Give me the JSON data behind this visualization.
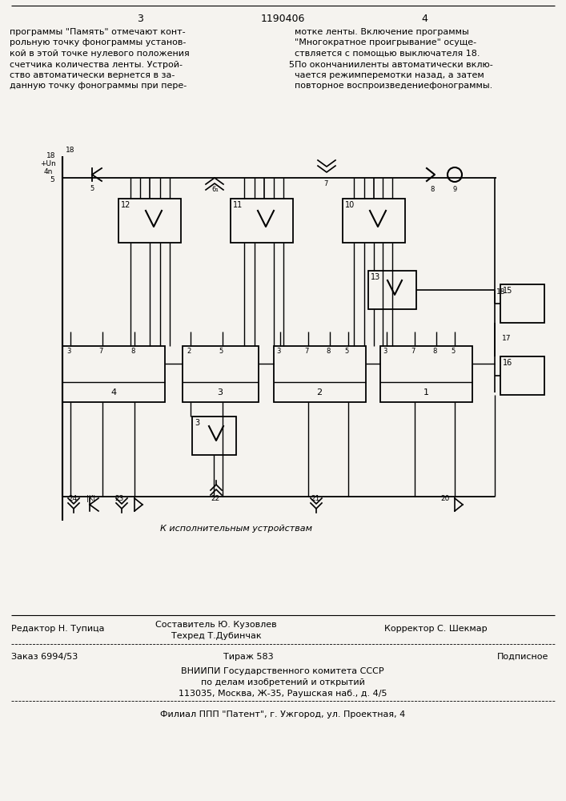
{
  "bg_color": "#f5f3ef",
  "title_number": "1190406",
  "page_left": "3",
  "page_right": "4",
  "left_text": [
    "программы \"Память\" отмечают конт-",
    "рольную точку фонограммы установ-",
    "кой в этой точке нулевого положения",
    "счетчика количества ленты. Устрой-",
    "ство автоматически вернется в за-",
    "данную точку фонограммы при пере-"
  ],
  "right_text": [
    "мотке ленты. Включение программы",
    "\"Многократное проигрывание\" осуще-",
    "ствляется с помощью выключателя 18.",
    "По окончанииленты автоматически вклю-",
    "чается режимперемотки назад, а затем",
    "повторное воспроизведениефонограммы."
  ],
  "bottom_text_col1_line1": "Редактор Н. Тупица",
  "bottom_text_col2_line1": "Составитель Ю. Кузовлев",
  "bottom_text_col2_line2": "Техред Т.Дубинчак",
  "bottom_text_col3_line1": "Корректор С. Шекмар",
  "bottom_order": "Заказ 6994/53",
  "bottom_tirazh": "Тираж 583",
  "bottom_podpisnoe": "Подписное",
  "bottom_vnipi": "ВНИИПИ Государственного комитета СССР",
  "bottom_po_delam": "по делам изобретений и открытий",
  "bottom_address": "113035, Москва, Ж-35, Раушская наб., д. 4/5",
  "bottom_filial": "Филиал ППП \"Патент\", г. Ужгород, ул. Проектная, 4"
}
